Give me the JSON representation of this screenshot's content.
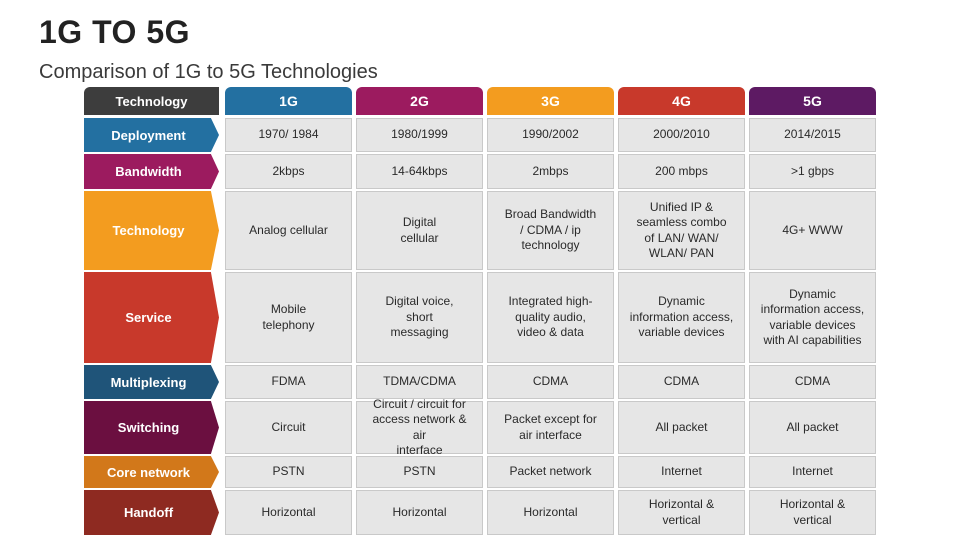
{
  "title": "1G TO 5G",
  "subtitle": "Comparison of 1G to 5G Technologies",
  "header": {
    "label": "Technology",
    "label_color": "#3d3d3d",
    "generations": [
      {
        "name": "1G",
        "color": "#2370a1"
      },
      {
        "name": "2G",
        "color": "#9c1b5f"
      },
      {
        "name": "3G",
        "color": "#f39c1f"
      },
      {
        "name": "4G",
        "color": "#c8392b"
      },
      {
        "name": "5G",
        "color": "#5d1a63"
      }
    ]
  },
  "rows": [
    {
      "label": "Deployment",
      "color": "#2370a1",
      "cells": [
        "1970/ 1984",
        "1980/1999",
        "1990/2002",
        "2000/2010",
        "2014/2015"
      ]
    },
    {
      "label": "Bandwidth",
      "color": "#9c1b5f",
      "cells": [
        "2kbps",
        "14-64kbps",
        "2mbps",
        "200 mbps",
        ">1 gbps"
      ]
    },
    {
      "label": "Technology",
      "color": "#f39c1f",
      "cells": [
        "Analog cellular",
        "Digital\ncellular",
        "Broad Bandwidth\n/ CDMA / ip\ntechnology",
        "Unified IP &\nseamless combo\nof LAN/ WAN/\nWLAN/ PAN",
        "4G+ WWW"
      ]
    },
    {
      "label": "Service",
      "color": "#c8392b",
      "cells": [
        "Mobile\ntelephony",
        "Digital voice,\nshort\nmessaging",
        "Integrated high-\nquality audio,\nvideo & data",
        "Dynamic\ninformation access,\nvariable devices",
        "Dynamic\ninformation access,\nvariable devices\nwith AI capabilities"
      ]
    },
    {
      "label": "Multiplexing",
      "color": "#1f5479",
      "cells": [
        "FDMA",
        "TDMA/CDMA",
        "CDMA",
        "CDMA",
        "CDMA"
      ]
    },
    {
      "label": "Switching",
      "color": "#6b0f40",
      "cells": [
        "Circuit",
        "Circuit / circuit for\naccess network & air\ninterface",
        "Packet except for\nair interface",
        "All packet",
        "All packet"
      ]
    },
    {
      "label": "Core network",
      "color": "#d2781a",
      "cells": [
        "PSTN",
        "PSTN",
        "Packet network",
        "Internet",
        "Internet"
      ]
    },
    {
      "label": "Handoff",
      "color": "#8e2a21",
      "cells": [
        "Horizontal",
        "Horizontal",
        "Horizontal",
        "Horizontal &\nvertical",
        "Horizontal &\nvertical"
      ]
    }
  ]
}
